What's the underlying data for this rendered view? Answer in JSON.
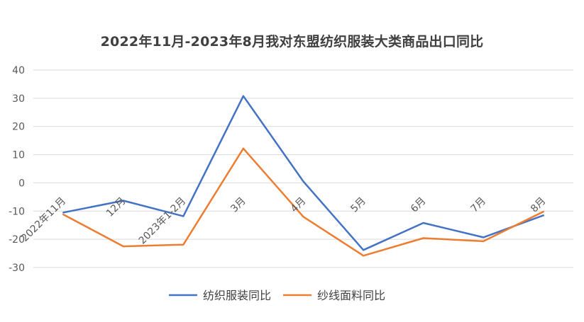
{
  "chart_data": {
    "type": "line",
    "title": "2022年11月-2023年8月我对东盟纺织服装大类商品出口同比",
    "categories": [
      "2022年11月",
      "12月",
      "2023年1-2月",
      "3月",
      "4月",
      "5月",
      "6月",
      "7月",
      "8月"
    ],
    "ylim": [
      -30,
      40
    ],
    "yticks": [
      -30,
      -20,
      -10,
      0,
      10,
      20,
      30,
      40
    ],
    "grid": true,
    "legend_position": "bottom",
    "series": [
      {
        "name": "纺织服装同比",
        "color": "#4472C4",
        "values": [
          -10.5,
          -6.3,
          -11.8,
          30.8,
          0.5,
          -23.8,
          -14.2,
          -19.3,
          -11.5
        ]
      },
      {
        "name": "纱线面料同比",
        "color": "#ED7D31",
        "values": [
          -11.2,
          -22.5,
          -21.9,
          12.2,
          -12.0,
          -25.8,
          -19.6,
          -20.7,
          -10.2
        ]
      }
    ]
  }
}
